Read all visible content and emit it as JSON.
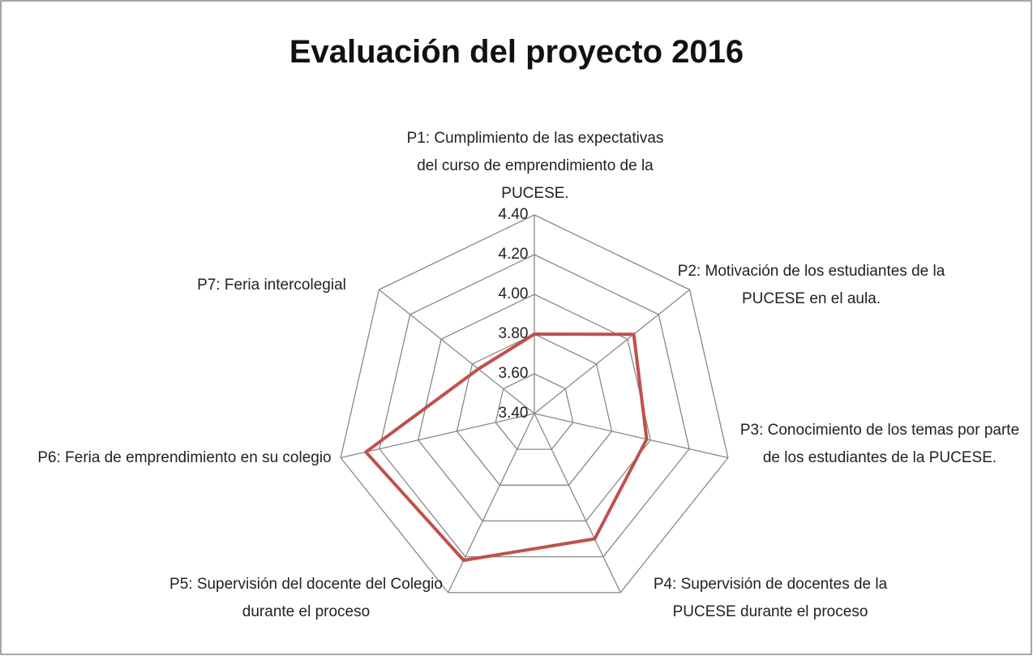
{
  "chart_data": {
    "type": "radar",
    "title": "Evaluación del proyecto 2016",
    "categories": [
      "P1:  Cumplimiento de las expectativas del curso de emprendimiento de la PUCESE.",
      "P2: Motivación de los estudiantes de la PUCESE en el aula.",
      "P3: Conocimiento de los temas por parte de los estudiantes de la PUCESE.",
      "P4: Supervisión de docentes de la PUCESE durante el proceso",
      "P5: Supervisión del docente del Colegio durante el proceso",
      "P6: Feria de emprendimiento en su colegio",
      "P7: Feria intercolegial"
    ],
    "values": [
      3.8,
      4.04,
      3.98,
      4.1,
      4.22,
      4.27,
      3.76
    ],
    "color": "#c0504d",
    "ylim": [
      3.4,
      4.4
    ],
    "yticks": [
      {
        "value": 3.4,
        "label": "3.40"
      },
      {
        "value": 3.6,
        "label": "3.60"
      },
      {
        "value": 3.8,
        "label": "3.80"
      },
      {
        "value": 4.0,
        "label": "4.00"
      },
      {
        "value": 4.2,
        "label": "4.20"
      },
      {
        "value": 4.4,
        "label": "4.40"
      }
    ],
    "grid": true
  }
}
